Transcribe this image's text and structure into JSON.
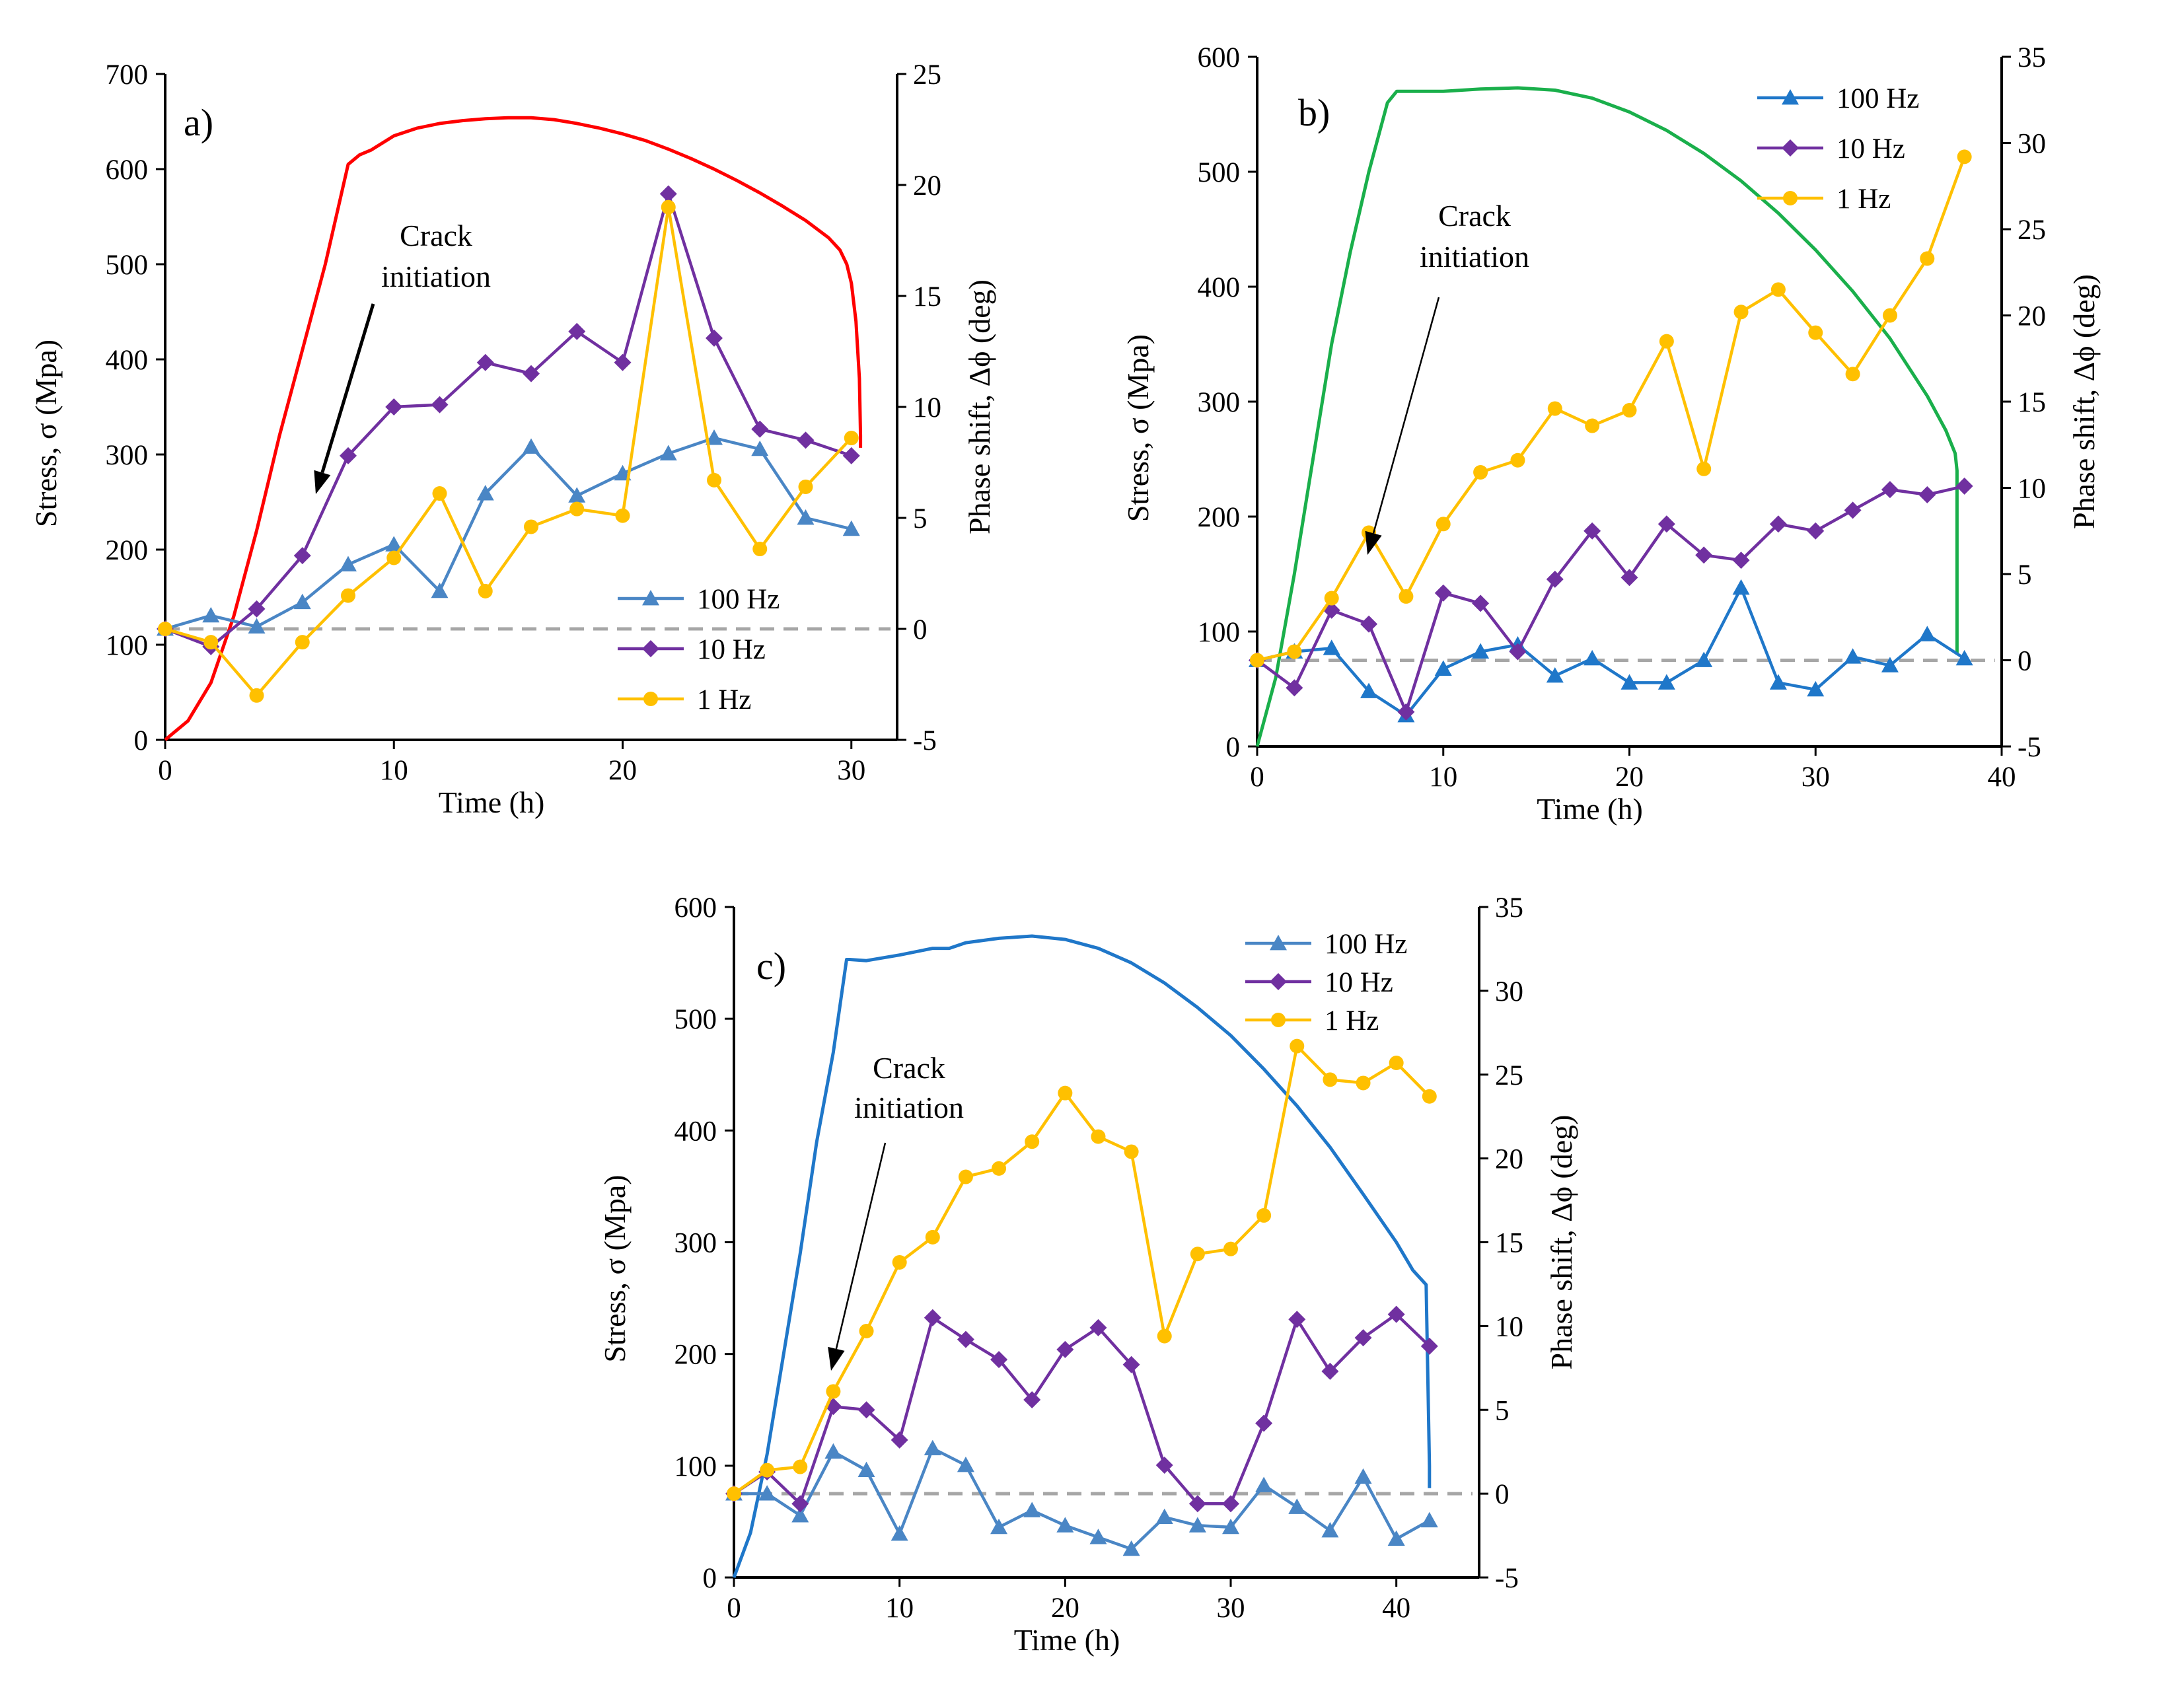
{
  "chart_data": [
    {
      "type": "line",
      "panel_label": "a)",
      "xlabel": "Time (h)",
      "ylabel": "Stress, σ (Mpa)",
      "y2label": "Phase shift, Δϕ (deg)",
      "xlim": [
        0,
        32
      ],
      "xticks": [
        0,
        10,
        20,
        30
      ],
      "ylim": [
        0,
        700
      ],
      "yticks": [
        0,
        100,
        200,
        300,
        400,
        500,
        600,
        700
      ],
      "y2lim": [
        -5,
        25
      ],
      "y2ticks": [
        -5,
        0,
        5,
        10,
        15,
        20,
        25
      ],
      "annotation": [
        "Crack",
        "initiation"
      ],
      "stress_curve": {
        "name": "Stress",
        "color": "#ff0000",
        "x": [
          0,
          1,
          2,
          3,
          4,
          5,
          6,
          7,
          8,
          8.5,
          9,
          10,
          11,
          12,
          13,
          14,
          15,
          16,
          17,
          18,
          19,
          20,
          21,
          22,
          23,
          24,
          25,
          26,
          27,
          28,
          29,
          29.5,
          29.8,
          30,
          30.2,
          30.35,
          30.4,
          30.4
        ],
        "y": [
          0,
          20,
          60,
          130,
          220,
          320,
          410,
          500,
          605,
          615,
          620,
          635,
          643,
          648,
          651,
          653,
          654,
          654,
          652,
          648,
          643,
          637,
          630,
          621,
          611,
          600,
          588,
          575,
          561,
          546,
          528,
          515,
          500,
          480,
          440,
          380,
          320,
          307
        ]
      },
      "series": [
        {
          "name": "100 Hz",
          "color": "#4a86c5",
          "marker": "triangle",
          "x": [
            0,
            2,
            4,
            6,
            8,
            10,
            12,
            14,
            16,
            18,
            20,
            22,
            24,
            26,
            28,
            30
          ],
          "y": [
            0,
            0.6,
            0.1,
            1.2,
            2.9,
            3.8,
            1.7,
            6.1,
            8.2,
            6.0,
            7.0,
            7.9,
            8.6,
            8.1,
            5.0,
            4.5
          ]
        },
        {
          "name": "10 Hz",
          "color": "#7030a0",
          "marker": "diamond",
          "x": [
            0,
            2,
            4,
            6,
            8,
            10,
            12,
            14,
            16,
            18,
            20,
            22,
            24,
            26,
            28,
            30
          ],
          "y": [
            0,
            -0.8,
            0.9,
            3.3,
            7.8,
            10.0,
            10.1,
            12.0,
            11.5,
            13.4,
            12.0,
            19.6,
            13.1,
            9.0,
            8.5,
            7.8
          ]
        },
        {
          "name": "1 Hz",
          "color": "#ffc000",
          "marker": "circle",
          "x": [
            0,
            2,
            4,
            6,
            8,
            10,
            12,
            14,
            16,
            18,
            20,
            22,
            24,
            26,
            28,
            30
          ],
          "y": [
            0,
            -0.6,
            -3.0,
            -0.6,
            1.5,
            3.2,
            6.1,
            1.7,
            4.6,
            5.4,
            5.1,
            19.0,
            6.7,
            3.6,
            6.4,
            8.6
          ]
        }
      ],
      "legend": [
        "100 Hz",
        "10 Hz",
        "1 Hz"
      ],
      "legend_position": "bottom-right"
    },
    {
      "type": "line",
      "panel_label": "b)",
      "xlabel": "Time (h)",
      "ylabel": "Stress, σ (Mpa)",
      "y2label": "Phase shift, Δϕ (deg)",
      "xlim": [
        0,
        40
      ],
      "xticks": [
        0,
        10,
        20,
        30,
        40
      ],
      "ylim": [
        0,
        600
      ],
      "yticks": [
        0,
        100,
        200,
        300,
        400,
        500,
        600
      ],
      "y2lim": [
        -5,
        35
      ],
      "y2ticks": [
        -5,
        0,
        5,
        10,
        15,
        20,
        25,
        30,
        35
      ],
      "annotation": [
        "Crack",
        "initiation"
      ],
      "stress_curve": {
        "name": "Stress",
        "color": "#1aaf4b",
        "x": [
          0,
          1,
          2,
          3,
          4,
          5,
          6,
          7,
          7.5,
          8,
          9,
          10,
          12,
          14,
          16,
          18,
          20,
          22,
          24,
          26,
          28,
          30,
          32,
          34,
          35,
          36,
          37,
          37.5,
          37.6,
          37.6
        ],
        "y": [
          0,
          60,
          150,
          250,
          350,
          430,
          500,
          560,
          570,
          570,
          570,
          570,
          572,
          573,
          571,
          564,
          552,
          536,
          516,
          492,
          464,
          432,
          396,
          355,
          330,
          305,
          275,
          255,
          240,
          80
        ]
      },
      "series": [
        {
          "name": "100 Hz",
          "color": "#1f77c9",
          "marker": "triangle",
          "x": [
            0,
            2,
            4,
            6,
            8,
            10,
            12,
            14,
            16,
            18,
            20,
            22,
            24,
            26,
            28,
            30,
            32,
            34,
            36,
            38
          ],
          "y": [
            0,
            0.5,
            0.7,
            -1.8,
            -3.2,
            -0.5,
            0.5,
            0.9,
            -0.9,
            0.1,
            -1.3,
            -1.3,
            0,
            4.2,
            -1.3,
            -1.7,
            0.2,
            -0.3,
            1.5,
            0.1
          ]
        },
        {
          "name": "10 Hz",
          "color": "#7030a0",
          "marker": "diamond",
          "x": [
            0,
            2,
            4,
            6,
            8,
            10,
            12,
            14,
            16,
            18,
            20,
            22,
            24,
            26,
            28,
            30,
            32,
            34,
            36,
            38
          ],
          "y": [
            0,
            -1.6,
            2.9,
            2.1,
            -3.0,
            3.9,
            3.3,
            0.5,
            4.7,
            7.5,
            4.8,
            7.9,
            6.1,
            5.8,
            7.9,
            7.5,
            8.7,
            9.9,
            9.6,
            10.1
          ]
        },
        {
          "name": "1 Hz",
          "color": "#ffc000",
          "marker": "circle",
          "x": [
            0,
            2,
            4,
            6,
            8,
            10,
            12,
            14,
            16,
            18,
            20,
            22,
            24,
            26,
            28,
            30,
            32,
            34,
            36,
            38
          ],
          "y": [
            0,
            0.5,
            3.6,
            7.4,
            3.7,
            7.9,
            10.9,
            11.6,
            14.6,
            13.6,
            14.5,
            18.5,
            11.1,
            20.2,
            21.5,
            19.0,
            16.6,
            20.0,
            23.3,
            29.2
          ]
        }
      ],
      "legend": [
        "100 Hz",
        "10 Hz",
        "1 Hz"
      ],
      "legend_position": "top-right"
    },
    {
      "type": "line",
      "panel_label": "c)",
      "xlabel": "Time (h)",
      "ylabel": "Stress, σ (Mpa)",
      "y2label": "Phase shift, Δϕ (deg)",
      "xlim": [
        0,
        45
      ],
      "xticks": [
        0,
        10,
        20,
        30,
        40
      ],
      "ylim": [
        0,
        600
      ],
      "yticks": [
        0,
        100,
        200,
        300,
        400,
        500,
        600
      ],
      "y2lim": [
        -5,
        35
      ],
      "y2ticks": [
        -5,
        0,
        5,
        10,
        15,
        20,
        25,
        30,
        35
      ],
      "annotation": [
        "Crack",
        "initiation"
      ],
      "stress_curve": {
        "name": "Stress",
        "color": "#1f77c9",
        "x": [
          0,
          1,
          2,
          3,
          4,
          5,
          6,
          6.8,
          7,
          8,
          10,
          12,
          13,
          14,
          16,
          18,
          20,
          22,
          24,
          26,
          28,
          30,
          32,
          34,
          36,
          38,
          40,
          41,
          41.8,
          42,
          42
        ],
        "y": [
          0,
          40,
          110,
          200,
          290,
          390,
          470,
          553,
          553,
          552,
          557,
          563,
          563,
          568,
          572,
          574,
          571,
          563,
          550,
          532,
          510,
          485,
          455,
          422,
          385,
          343,
          300,
          275,
          262,
          100,
          80
        ]
      },
      "series": [
        {
          "name": "100 Hz",
          "color": "#4a86c5",
          "marker": "triangle",
          "x": [
            0,
            2,
            4,
            6,
            8,
            10,
            12,
            14,
            16,
            18,
            20,
            22,
            24,
            26,
            28,
            30,
            32,
            34,
            36,
            38,
            40,
            42
          ],
          "y": [
            0,
            0,
            -1.3,
            2.5,
            1.4,
            -2.4,
            2.7,
            1.7,
            -2.0,
            -1.0,
            -1.9,
            -2.6,
            -3.3,
            -1.4,
            -1.9,
            -2.0,
            0.5,
            -0.8,
            -2.2,
            1.0,
            -2.7,
            -1.6
          ]
        },
        {
          "name": "10 Hz",
          "color": "#7030a0",
          "marker": "diamond",
          "x": [
            0,
            2,
            4,
            6,
            8,
            10,
            12,
            14,
            16,
            18,
            20,
            22,
            24,
            26,
            28,
            30,
            32,
            34,
            36,
            38,
            40,
            42
          ],
          "y": [
            0,
            1.3,
            -0.6,
            5.2,
            5.0,
            3.2,
            10.5,
            9.2,
            8.0,
            5.6,
            8.6,
            9.9,
            7.7,
            1.7,
            -0.6,
            -0.6,
            4.2,
            10.4,
            7.3,
            9.3,
            10.7,
            8.8
          ]
        },
        {
          "name": "1 Hz",
          "color": "#ffc000",
          "marker": "circle",
          "x": [
            0,
            2,
            4,
            6,
            8,
            10,
            12,
            14,
            16,
            18,
            20,
            22,
            24,
            26,
            28,
            30,
            32,
            34,
            36,
            38,
            40,
            42
          ],
          "y": [
            0,
            1.4,
            1.6,
            6.1,
            9.7,
            13.8,
            15.3,
            18.9,
            19.4,
            21.0,
            23.9,
            21.3,
            20.4,
            9.4,
            14.3,
            14.6,
            16.6,
            26.7,
            24.7,
            24.5,
            25.7,
            23.7
          ]
        }
      ],
      "legend": [
        "100 Hz",
        "10 Hz",
        "1 Hz"
      ],
      "legend_position": "top-right"
    }
  ]
}
